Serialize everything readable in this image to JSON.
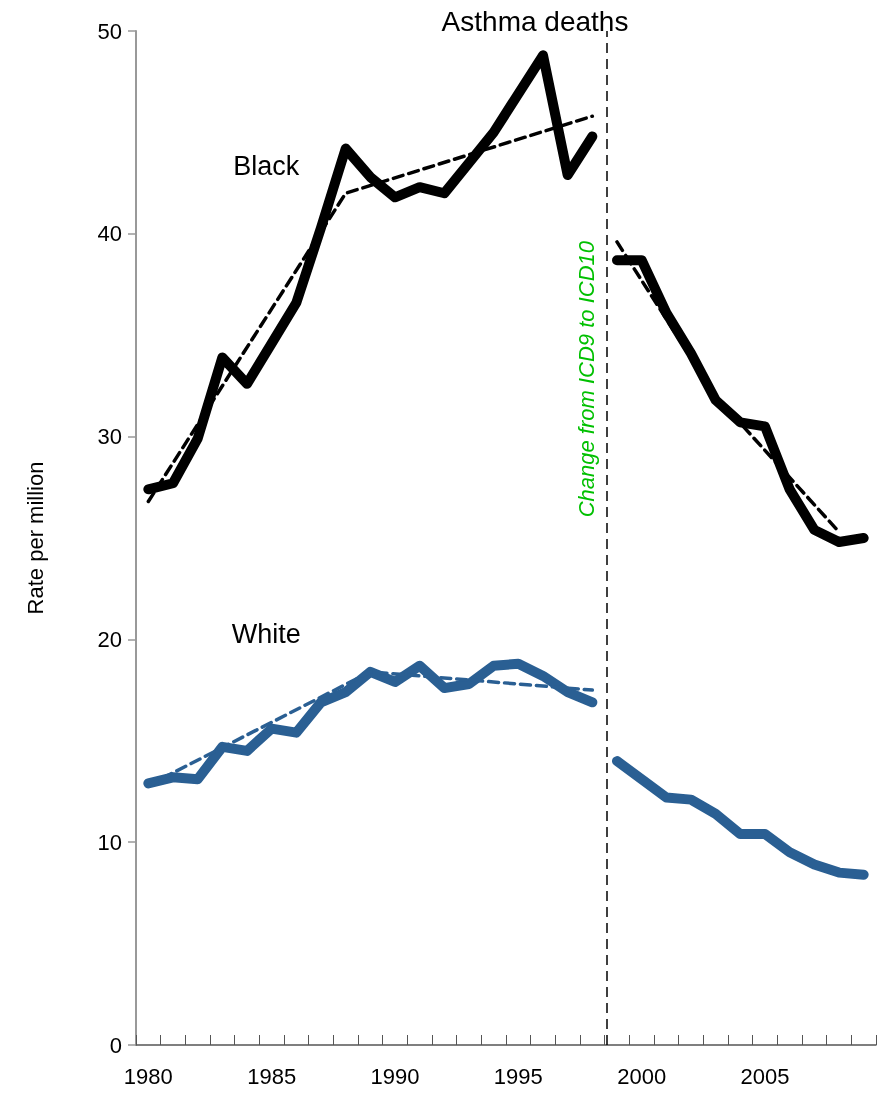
{
  "chart_data": {
    "type": "line",
    "title": "Asthma deaths",
    "ylabel": "Rate per million",
    "xlim": [
      1979.5,
      2009.5
    ],
    "xticks": [
      1980,
      1985,
      1990,
      1995,
      2000,
      2005,
      {
        "value": 1979.5,
        "label": null
      },
      {
        "value": 1980.5,
        "label": null
      },
      {
        "value": 1981.5,
        "label": null
      },
      {
        "value": 1982.5,
        "label": null
      },
      {
        "value": 1983.5,
        "label": null
      },
      {
        "value": 1984.5,
        "label": null
      },
      {
        "value": 1985.5,
        "label": null
      },
      {
        "value": 1986.5,
        "label": null
      },
      {
        "value": 1987.5,
        "label": null
      },
      {
        "value": 1988.5,
        "label": null
      },
      {
        "value": 1989.5,
        "label": null
      },
      {
        "value": 1990.5,
        "label": null
      },
      {
        "value": 1991.5,
        "label": null
      },
      {
        "value": 1992.5,
        "label": null
      },
      {
        "value": 1993.5,
        "label": null
      },
      {
        "value": 1994.5,
        "label": null
      },
      {
        "value": 1995.5,
        "label": null
      },
      {
        "value": 1996.5,
        "label": null
      },
      {
        "value": 1997.5,
        "label": null
      },
      {
        "value": 1998.5,
        "label": null
      },
      {
        "value": 1999.5,
        "label": null
      },
      {
        "value": 2000.5,
        "label": null
      },
      {
        "value": 2001.5,
        "label": null
      },
      {
        "value": 2002.5,
        "label": null
      },
      {
        "value": 2003.5,
        "label": null
      },
      {
        "value": 2004.5,
        "label": null
      },
      {
        "value": 2005.5,
        "label": null
      },
      {
        "value": 2006.5,
        "label": null
      },
      {
        "value": 2007.5,
        "label": null
      },
      {
        "value": 2008.5,
        "label": null
      },
      {
        "value": 2009.5,
        "label": null
      }
    ],
    "ylim": [
      0,
      50
    ],
    "yticks": [
      0,
      10,
      20,
      30,
      40,
      50
    ],
    "grid": false,
    "legend": false,
    "marker": "none",
    "series": [
      {
        "name": "Black",
        "color": "#000000",
        "line_style": "solid",
        "x": [
          1980,
          1981,
          1982,
          1983,
          1984,
          1985,
          1986,
          1987,
          1988,
          1989,
          1990,
          1991,
          1992,
          1993,
          1994,
          1995,
          1996,
          1997,
          1998
        ],
        "values": [
          27.4,
          27.7,
          29.9,
          33.9,
          32.6,
          34.6,
          36.6,
          40.3,
          44.2,
          42.8,
          41.8,
          42.3,
          42.0,
          43.5,
          45.0,
          46.9,
          48.8,
          42.9,
          44.8
        ]
      },
      {
        "color": "#000000",
        "line_style": "solid",
        "x": [
          1999,
          2000,
          2001,
          2002,
          2003,
          2004,
          2005,
          2006,
          2007,
          2008,
          2009
        ],
        "values": [
          38.7,
          38.7,
          36.1,
          34.1,
          31.8,
          30.7,
          30.5,
          27.4,
          25.4,
          24.8,
          25.0
        ]
      },
      {
        "color": "#000000",
        "line_style": "dashed",
        "x": [
          1980,
          1988,
          1998
        ],
        "values": [
          26.8,
          42.0,
          45.8
        ]
      },
      {
        "color": "#000000",
        "line_style": "dashed",
        "x": [
          1999,
          2003,
          2008
        ],
        "values": [
          39.6,
          32.0,
          25.3
        ]
      },
      {
        "name": "White",
        "color": "#2a5f93",
        "line_style": "solid",
        "x": [
          1980,
          1981,
          1982,
          1983,
          1984,
          1985,
          1986,
          1987,
          1988,
          1989,
          1990,
          1991,
          1992,
          1993,
          1994,
          1995,
          1996,
          1997,
          1998
        ],
        "values": [
          12.9,
          13.2,
          13.1,
          14.7,
          14.5,
          15.6,
          15.4,
          16.9,
          17.4,
          18.4,
          17.9,
          18.7,
          17.6,
          17.8,
          18.7,
          18.8,
          18.2,
          17.4,
          16.9
        ]
      },
      {
        "color": "#2a5f93",
        "line_style": "solid",
        "x": [
          1999,
          2000,
          2001,
          2002,
          2003,
          2004,
          2005,
          2006,
          2007,
          2008,
          2009
        ],
        "values": [
          14.0,
          13.1,
          12.2,
          12.1,
          11.4,
          10.4,
          10.4,
          9.5,
          8.9,
          8.5,
          8.4
        ]
      },
      {
        "color": "#2a5f93",
        "line_style": "dashed",
        "x": [
          1980,
          1989,
          1998
        ],
        "values": [
          12.8,
          18.4,
          17.5
        ]
      }
    ],
    "ref_lines": [
      {
        "axis": "x",
        "value": 1998.6,
        "label": "Change from ICD9 to ICD10",
        "color": "#000000",
        "line_style": "dashed"
      }
    ]
  }
}
